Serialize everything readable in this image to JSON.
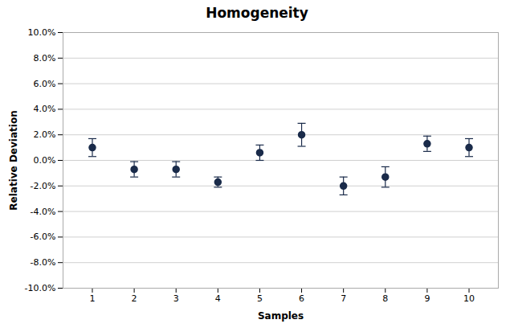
{
  "chart_data": {
    "type": "errorbar",
    "title": "Homogeneity",
    "xlabel": "Samples",
    "ylabel": "Relative Deviation",
    "x": [
      1,
      2,
      3,
      4,
      5,
      6,
      7,
      8,
      9,
      10
    ],
    "values": [
      0.01,
      -0.007,
      -0.007,
      -0.017,
      0.006,
      0.02,
      -0.02,
      -0.013,
      0.013,
      0.01
    ],
    "yerr": [
      0.007,
      0.006,
      0.006,
      0.004,
      0.006,
      0.009,
      0.007,
      0.008,
      0.006,
      0.007
    ],
    "color": "#1a2b4a",
    "marker": "circle",
    "xlim": [
      0.3,
      10.7
    ],
    "xticks": [
      1,
      2,
      3,
      4,
      5,
      6,
      7,
      8,
      9,
      10
    ],
    "ylim": [
      -0.1,
      0.1
    ],
    "yticks": [
      {
        "value": -0.1,
        "label": "-10.0%"
      },
      {
        "value": -0.08,
        "label": "-8.0%"
      },
      {
        "value": -0.06,
        "label": "-6.0%"
      },
      {
        "value": -0.04,
        "label": "-4.0%"
      },
      {
        "value": -0.02,
        "label": "-2.0%"
      },
      {
        "value": 0.0,
        "label": "0.0%"
      },
      {
        "value": 0.02,
        "label": "2.0%"
      },
      {
        "value": 0.04,
        "label": "4.0%"
      },
      {
        "value": 0.06,
        "label": "6.0%"
      },
      {
        "value": 0.08,
        "label": "8.0%"
      },
      {
        "value": 0.1,
        "label": "10.0%"
      }
    ],
    "grid": "y"
  }
}
